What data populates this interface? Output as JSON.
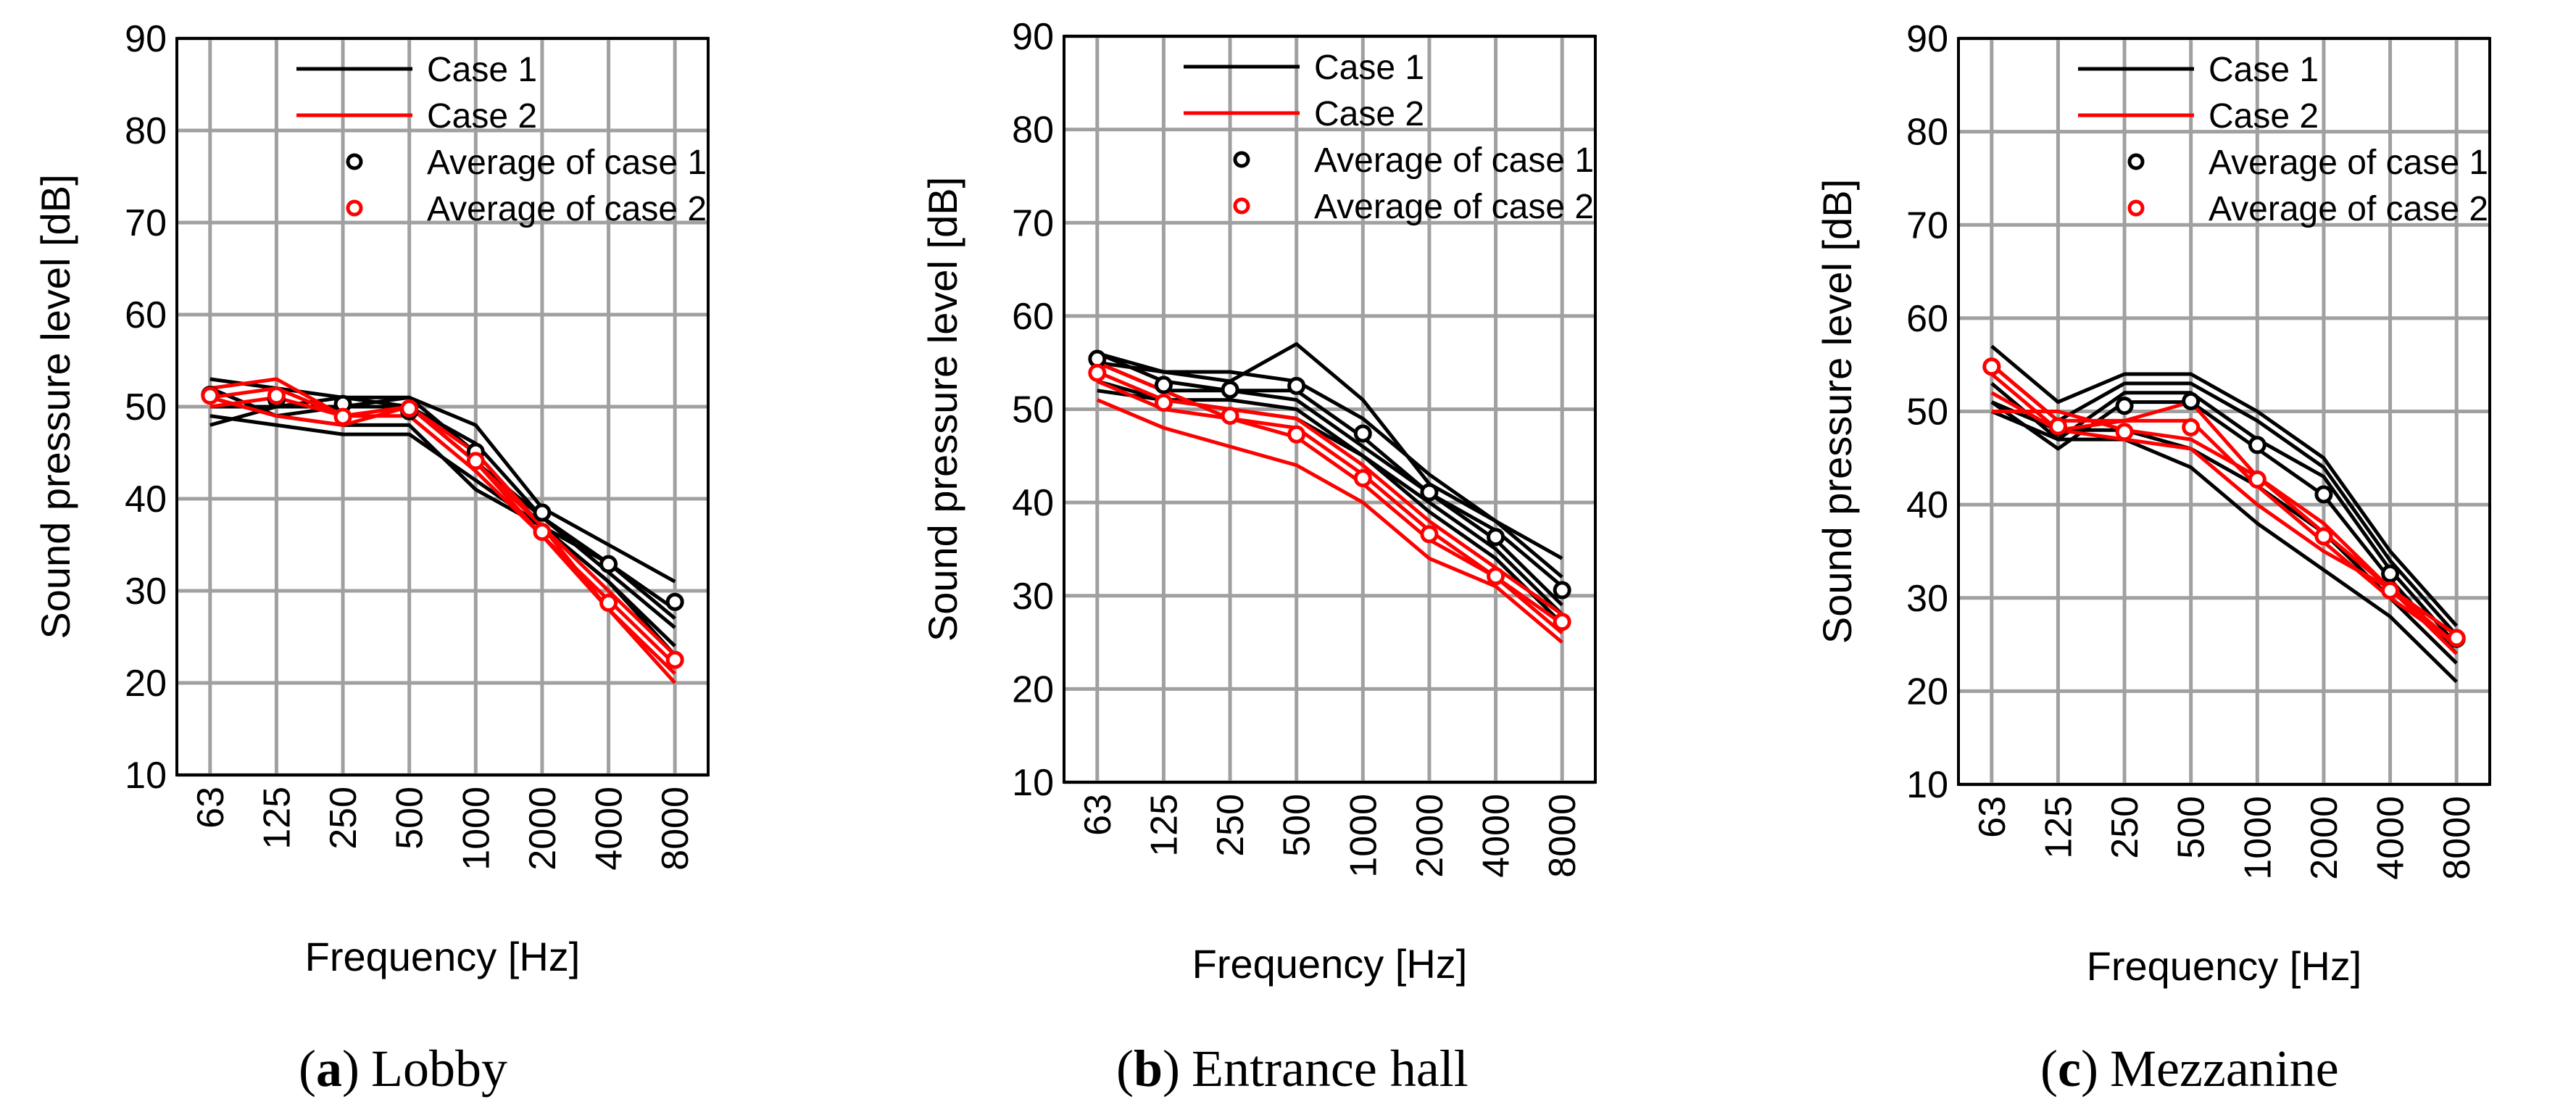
{
  "colors": {
    "case1": "#000000",
    "case2": "#ff0000",
    "grid": "#a0a0a0",
    "frame": "#000000"
  },
  "chart_data": [
    {
      "type": "line",
      "caption": {
        "open": "(",
        "letter": "a",
        "close": ")",
        "title": "Lobby"
      },
      "xlabel": "Frequency [Hz]",
      "ylabel": "Sound pressure level [dB]",
      "ylim": [
        10,
        90
      ],
      "yticks": [
        "90",
        "80",
        "70",
        "60",
        "50",
        "40",
        "30",
        "20",
        "10"
      ],
      "categories": [
        "63",
        "125",
        "250",
        "500",
        "1000",
        "2000",
        "4000",
        "8000"
      ],
      "legend": {
        "position": "top",
        "case1": "Case 1",
        "case2": "Case 2",
        "avg1": "Average of case 1",
        "avg2": "Average of case 2"
      },
      "series": [
        {
          "name": "Case 1",
          "values": [
            53,
            52,
            51,
            51,
            48,
            39,
            35,
            31
          ]
        },
        {
          "name": "Case 1",
          "values": [
            51,
            49,
            50,
            50,
            46,
            38,
            33,
            28
          ]
        },
        {
          "name": "Case 1",
          "values": [
            48,
            50,
            51,
            50,
            44,
            38,
            32,
            26
          ]
        },
        {
          "name": "Case 1",
          "values": [
            52,
            49,
            48,
            48,
            41,
            37,
            31,
            24
          ]
        },
        {
          "name": "Case 1",
          "values": [
            49,
            48,
            47,
            47,
            42,
            37,
            31,
            23
          ]
        },
        {
          "name": "Case 1",
          "values": [
            50,
            50,
            50,
            51,
            45,
            37,
            33,
            27
          ]
        },
        {
          "name": "Case 2",
          "values": [
            52,
            53,
            49,
            50,
            45,
            37,
            28,
            21
          ]
        },
        {
          "name": "Case 2",
          "values": [
            51,
            52,
            49,
            50,
            44,
            36,
            29,
            22
          ]
        },
        {
          "name": "Case 2",
          "values": [
            51,
            49,
            48,
            50,
            44,
            37,
            30,
            23
          ]
        },
        {
          "name": "Case 2",
          "values": [
            50,
            51,
            49,
            49,
            43,
            36,
            28,
            20
          ]
        }
      ],
      "average_case1": [
        51.3,
        50.8,
        50.3,
        49.5,
        45.1,
        38.5,
        32.9,
        28.8
      ],
      "average_case2": [
        51.2,
        51.2,
        48.9,
        49.8,
        44.1,
        36.4,
        28.7,
        22.5
      ]
    },
    {
      "type": "line",
      "caption": {
        "open": "(",
        "letter": "b",
        "close": ")",
        "title": "Entrance hall"
      },
      "xlabel": "Frequency [Hz]",
      "ylabel": "Sound pressure level [dB]",
      "ylim": [
        10,
        90
      ],
      "yticks": [
        "90",
        "80",
        "70",
        "60",
        "50",
        "40",
        "30",
        "20",
        "10"
      ],
      "categories": [
        "63",
        "125",
        "250",
        "500",
        "1000",
        "2000",
        "4000",
        "8000"
      ],
      "legend": {
        "position": "top",
        "case1": "Case 1",
        "case2": "Case 2",
        "avg1": "Average of case 1",
        "avg2": "Average of case 2"
      },
      "series": [
        {
          "name": "Case 1",
          "values": [
            56,
            54,
            53,
            57,
            51,
            42,
            38,
            34
          ]
        },
        {
          "name": "Case 1",
          "values": [
            55,
            54,
            54,
            53,
            49,
            43,
            38,
            32
          ]
        },
        {
          "name": "Case 1",
          "values": [
            56,
            53,
            52,
            52,
            47,
            41,
            37,
            31
          ]
        },
        {
          "name": "Case 1",
          "values": [
            55,
            52,
            52,
            51,
            46,
            41,
            36,
            29
          ]
        },
        {
          "name": "Case 1",
          "values": [
            53,
            51,
            51,
            50,
            45,
            40,
            35,
            28
          ]
        },
        {
          "name": "Case 1",
          "values": [
            52,
            51,
            50,
            49,
            45,
            39,
            34,
            27
          ]
        },
        {
          "name": "Case 2",
          "values": [
            55,
            52,
            49,
            48,
            43,
            37,
            32,
            27
          ]
        },
        {
          "name": "Case 2",
          "values": [
            54,
            51,
            50,
            49,
            44,
            38,
            33,
            28
          ]
        },
        {
          "name": "Case 2",
          "values": [
            53,
            50,
            49,
            47,
            42,
            36,
            32,
            26
          ]
        },
        {
          "name": "Case 2",
          "values": [
            51,
            48,
            46,
            44,
            40,
            34,
            31,
            25
          ]
        }
      ],
      "average_case1": [
        55.4,
        52.6,
        52.1,
        52.5,
        47.4,
        41.1,
        36.3,
        30.6
      ],
      "average_case2": [
        53.9,
        50.7,
        49.3,
        47.3,
        42.6,
        36.6,
        32.1,
        27.2
      ]
    },
    {
      "type": "line",
      "caption": {
        "open": "(",
        "letter": "c",
        "close": ")",
        "title": "Mezzanine"
      },
      "xlabel": "Frequency [Hz]",
      "ylabel": "Sound pressure level [dB]",
      "ylim": [
        10,
        90
      ],
      "yticks": [
        "90",
        "80",
        "70",
        "60",
        "50",
        "40",
        "30",
        "20",
        "10"
      ],
      "categories": [
        "63",
        "125",
        "250",
        "500",
        "1000",
        "2000",
        "4000",
        "8000"
      ],
      "legend": {
        "position": "top",
        "case1": "Case 1",
        "case2": "Case 2",
        "avg1": "Average of case 1",
        "avg2": "Average of case 2"
      },
      "series": [
        {
          "name": "Case 1",
          "values": [
            57,
            51,
            54,
            54,
            50,
            45,
            35,
            27
          ]
        },
        {
          "name": "Case 1",
          "values": [
            55,
            49,
            53,
            53,
            49,
            44,
            34,
            26
          ]
        },
        {
          "name": "Case 1",
          "values": [
            53,
            47,
            52,
            52,
            47,
            43,
            33,
            25
          ]
        },
        {
          "name": "Case 1",
          "values": [
            51,
            46,
            51,
            51,
            46,
            41,
            32,
            24
          ]
        },
        {
          "name": "Case 1",
          "values": [
            51,
            48,
            48,
            46,
            42,
            37,
            30,
            23
          ]
        },
        {
          "name": "Case 1",
          "values": [
            50,
            47,
            47,
            44,
            38,
            33,
            28,
            21
          ]
        },
        {
          "name": "Case 2",
          "values": [
            55,
            49,
            49,
            51,
            43,
            38,
            31,
            26
          ]
        },
        {
          "name": "Case 2",
          "values": [
            54,
            48,
            49,
            49,
            42,
            36,
            30,
            25
          ]
        },
        {
          "name": "Case 2",
          "values": [
            52,
            48,
            47,
            46,
            40,
            35,
            31,
            24
          ]
        },
        {
          "name": "Case 2",
          "values": [
            50,
            50,
            48,
            47,
            43,
            37,
            31,
            25
          ]
        }
      ],
      "average_case1": [
        54.8,
        48.3,
        50.6,
        51.1,
        46.4,
        41.1,
        32.6,
        25.6
      ],
      "average_case2": [
        54.8,
        48.4,
        47.8,
        48.3,
        42.7,
        36.6,
        30.8,
        25.7
      ]
    }
  ]
}
